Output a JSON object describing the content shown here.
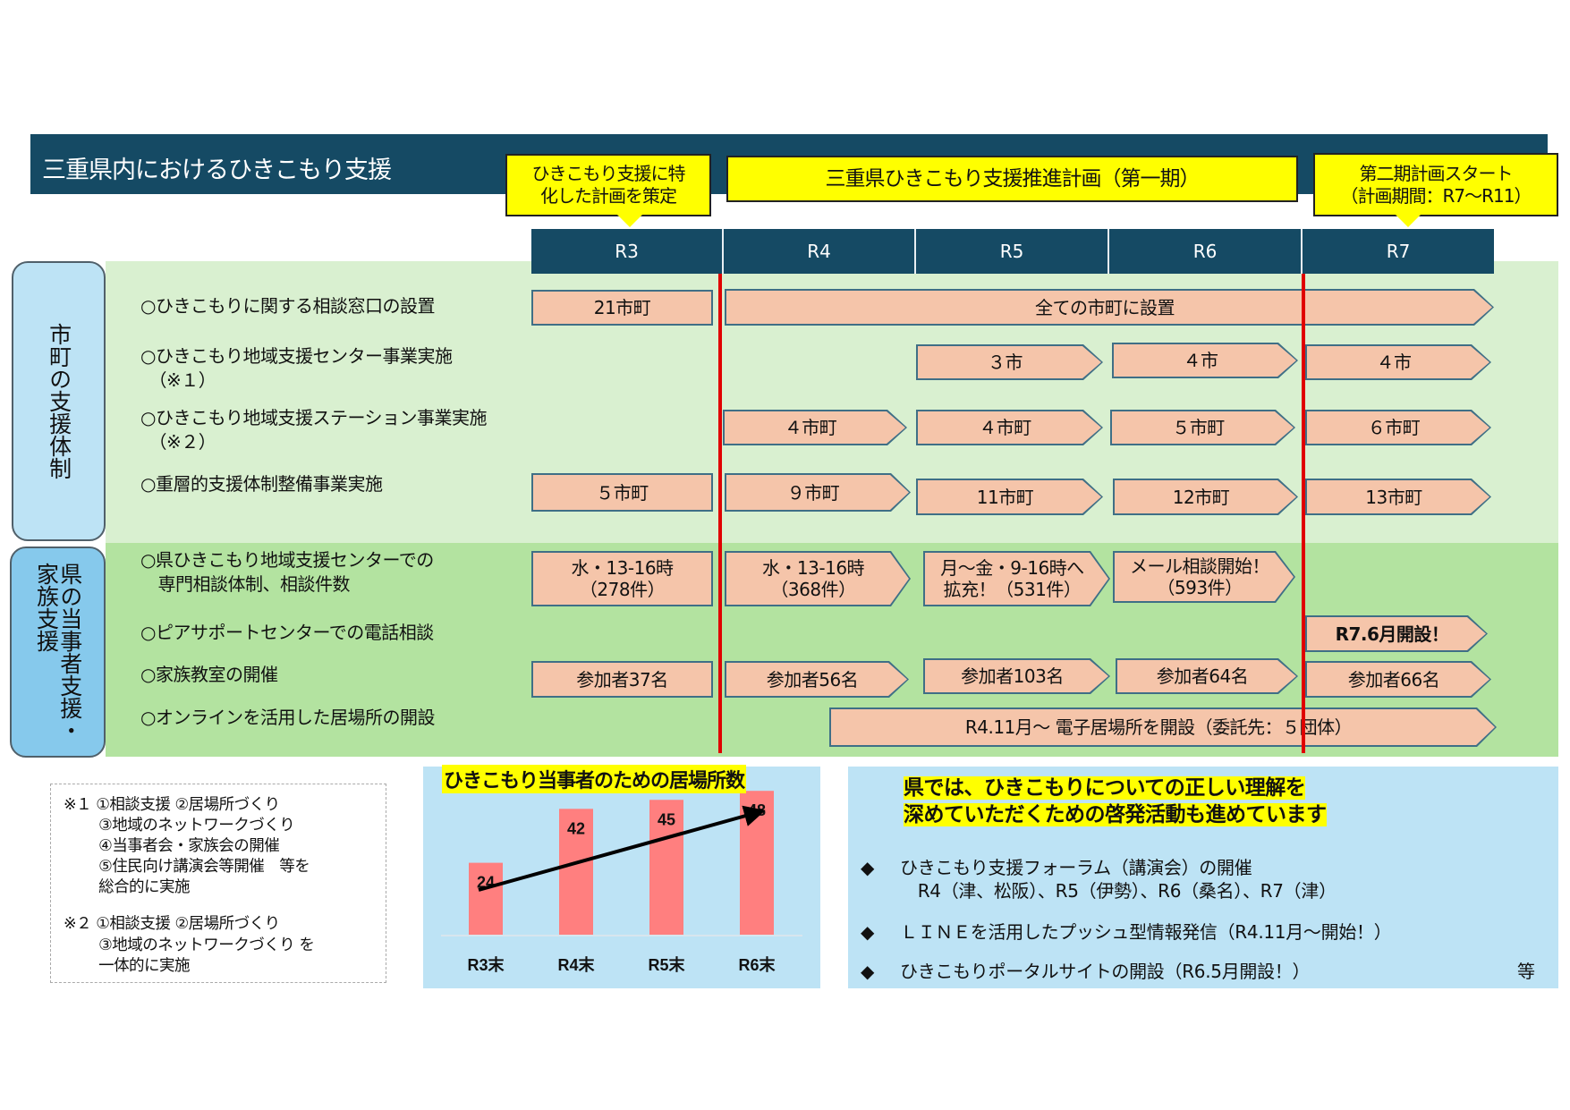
{
  "header": {
    "title": "三重県内におけるひきこもり支援"
  },
  "callouts": {
    "plan_made": "ひきこもり支援に特\n化した計画を策定",
    "first_plan": "三重県ひきこもり支援推進計画（第一期）",
    "second_plan": "第二期計画スタート\n（計画期間：R7～R11）"
  },
  "years": [
    "R3",
    "R4",
    "R5",
    "R6",
    "R7"
  ],
  "sections": {
    "municipal": "市町の支援体制",
    "prefecture": "県の当事者支援・\n家族支援"
  },
  "rows": [
    {
      "label": "○ひきこもりに関する相談窓口の設置",
      "cells": [
        "21市町",
        "全ての市町に設置"
      ]
    },
    {
      "label": "○ひきこもり地域支援センター事業実施\n　（※１）",
      "cells": [
        "３市",
        "４市",
        "４市"
      ]
    },
    {
      "label": "○ひきこもり地域支援ステーション事業実施\n　（※２）",
      "cells": [
        "４市町",
        "４市町",
        "５市町",
        "６市町"
      ]
    },
    {
      "label": "○重層的支援体制整備事業実施",
      "cells": [
        "５市町",
        "９市町",
        "11市町",
        "12市町",
        "13市町"
      ]
    },
    {
      "label": "○県ひきこもり地域支援センターでの\n　専門相談体制、相談件数",
      "cells": [
        "水・13-16時\n（278件）",
        "水・13-16時\n（368件）",
        "月～金・9-16時へ\n拡充！（531件）",
        "メール相談開始！\n（593件）"
      ]
    },
    {
      "label": "○ピアサポートセンターでの電話相談",
      "cells": [
        "R7.6月開設！"
      ]
    },
    {
      "label": "○家族教室の開催",
      "cells": [
        "参加者37名",
        "参加者56名",
        "参加者103名",
        "参加者64名",
        "参加者66名"
      ]
    },
    {
      "label": "○オンラインを活用した居場所の開設",
      "cells": [
        "R4.11月～ 電子居場所を開設（委託先：５団体）"
      ]
    }
  ],
  "notes": {
    "note1": "※１ ①相談支援 ②居場所づくり\n　　 ③地域のネットワークづくり\n　　 ④当事者会・家族会の開催\n　　 ⑤住民向け講演会等開催　等を\n　　 総合的に実施",
    "note2": "※２ ①相談支援 ②居場所づくり\n　　 ③地域のネットワークづくり を\n　　 一体的に実施"
  },
  "chart_data": {
    "type": "bar",
    "title": "ひきこもり当事者のための居場所数",
    "categories": [
      "R3末",
      "R4末",
      "R5末",
      "R6末"
    ],
    "values": [
      24,
      42,
      45,
      48
    ],
    "bar_color": "#ff7f7f",
    "trend_arrow": true,
    "ylim": [
      0,
      50
    ],
    "grid": false
  },
  "awareness": {
    "headline1": "県では、ひきこもりについての正しい理解を",
    "headline2": "深めていただくための啓発活動も進めています",
    "items": [
      "ひきこもり支援フォーラム（講演会）の開催\n　R4（津、松阪）、R5（伊勢）、R6（桑名）、R7（津）",
      "ＬＩＮＥを活用したプッシュ型情報発信（R4.11月～開始！）",
      "ひきこもりポータルサイトの開設（R6.5月開設！）"
    ],
    "etc": "等",
    "bullet_icon": "diamond"
  },
  "colors": {
    "header": "#154a64",
    "callout": "#ffff00",
    "box": "#f5c5aa",
    "redline": "#e00000",
    "band_light": "#d9f0d0",
    "band_dark": "#b3e3a0"
  }
}
